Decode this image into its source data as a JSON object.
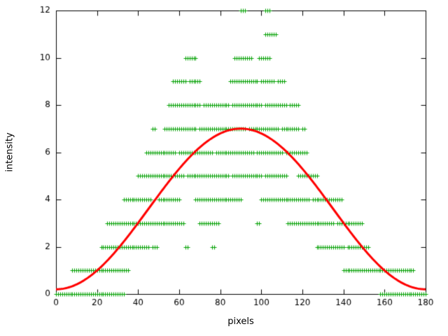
{
  "chart_data": {
    "type": "scatter",
    "title": "",
    "xlabel": "pixels",
    "ylabel": "intensity",
    "xlim": [
      0,
      180
    ],
    "ylim": [
      0,
      12
    ],
    "xticks": [
      0,
      20,
      40,
      60,
      80,
      100,
      120,
      140,
      160,
      180
    ],
    "yticks": [
      0,
      2,
      4,
      6,
      8,
      10,
      12
    ],
    "grid": false,
    "legend": "none",
    "marker": "plus",
    "scatter_color": "#00a000",
    "curve_color": "#ff0000",
    "axis_color": "#000000",
    "curve": {
      "type": "sin2",
      "offset": 0.2,
      "amplitude": 6.8,
      "period": 180
    },
    "scatter_rows": [
      {
        "y": 0,
        "segments": [
          [
            0,
            33
          ],
          [
            158,
            180
          ]
        ]
      },
      {
        "y": 1,
        "segments": [
          [
            8,
            35
          ],
          [
            140,
            174
          ]
        ]
      },
      {
        "y": 2,
        "segments": [
          [
            22,
            45
          ],
          [
            47,
            49
          ],
          [
            63,
            64
          ],
          [
            76,
            77
          ],
          [
            127,
            140
          ],
          [
            142,
            152
          ]
        ]
      },
      {
        "y": 3,
        "segments": [
          [
            25,
            62
          ],
          [
            70,
            79
          ],
          [
            98,
            99
          ],
          [
            113,
            135
          ],
          [
            137,
            149
          ]
        ]
      },
      {
        "y": 4,
        "segments": [
          [
            33,
            46
          ],
          [
            50,
            60
          ],
          [
            68,
            90
          ],
          [
            100,
            123
          ],
          [
            125,
            139
          ]
        ]
      },
      {
        "y": 5,
        "segments": [
          [
            40,
            62
          ],
          [
            64,
            84
          ],
          [
            86,
            100
          ],
          [
            102,
            112
          ],
          [
            118,
            127
          ]
        ]
      },
      {
        "y": 6,
        "segments": [
          [
            44,
            58
          ],
          [
            60,
            76
          ],
          [
            78,
            96
          ],
          [
            98,
            110
          ],
          [
            112,
            122
          ]
        ]
      },
      {
        "y": 7,
        "segments": [
          [
            47,
            48
          ],
          [
            53,
            68
          ],
          [
            70,
            92
          ],
          [
            94,
            108
          ],
          [
            110,
            118
          ],
          [
            120,
            121
          ]
        ]
      },
      {
        "y": 8,
        "segments": [
          [
            55,
            70
          ],
          [
            72,
            84
          ],
          [
            86,
            100
          ],
          [
            102,
            112
          ],
          [
            114,
            118
          ]
        ]
      },
      {
        "y": 9,
        "segments": [
          [
            57,
            63
          ],
          [
            65,
            70
          ],
          [
            85,
            98
          ],
          [
            100,
            106
          ],
          [
            108,
            111
          ]
        ]
      },
      {
        "y": 10,
        "segments": [
          [
            63,
            68
          ],
          [
            87,
            95
          ],
          [
            99,
            104
          ]
        ]
      },
      {
        "y": 11,
        "segments": [
          [
            102,
            107
          ]
        ]
      },
      {
        "y": 12,
        "segments": [
          [
            90,
            92
          ],
          [
            102,
            104
          ]
        ]
      }
    ]
  }
}
